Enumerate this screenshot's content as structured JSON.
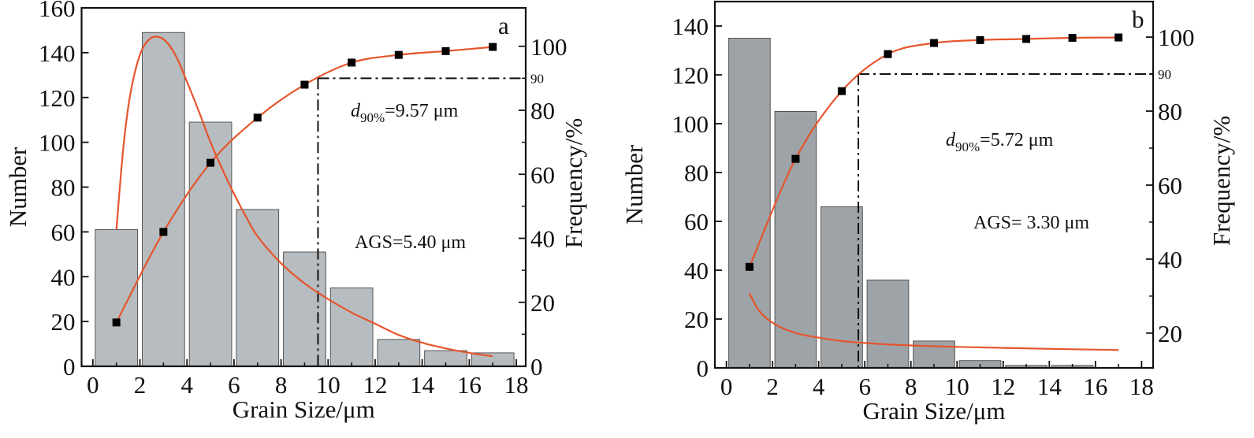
{
  "chart_data": [
    {
      "type": "bar",
      "panel_label": "a",
      "title": "",
      "xlabel": "Grain Size/μm",
      "ylabel": "Number",
      "y2label": "Frequency/%",
      "xlim": [
        -0.48,
        18.4
      ],
      "ylim": [
        0,
        160
      ],
      "y2lim": [
        0,
        112
      ],
      "xticks": [
        0,
        2,
        4,
        6,
        8,
        10,
        12,
        14,
        16,
        18
      ],
      "yticks": [
        0,
        20,
        40,
        60,
        80,
        100,
        120,
        140,
        160
      ],
      "y2ticks": [
        0,
        20,
        40,
        60,
        80,
        100
      ],
      "y2_extra_tick": {
        "value": 90,
        "label": "90"
      },
      "bar_color": "#b7bcc0",
      "curve_color": "#e5552c",
      "bars": {
        "name": "Number",
        "x": [
          1,
          3,
          5,
          7,
          9,
          11,
          13,
          15,
          17
        ],
        "values": [
          61,
          149,
          109,
          70,
          51,
          35,
          12,
          7,
          6
        ]
      },
      "cumulative": {
        "name": "Cumulative frequency",
        "axis": "right",
        "x": [
          1,
          3,
          5,
          7,
          9,
          11,
          13,
          15,
          17
        ],
        "values": [
          13.7,
          42,
          63.6,
          77.7,
          88,
          94.9,
          97.3,
          98.5,
          99.8
        ]
      },
      "distribution_fit": {
        "name": "Distribution fit",
        "axis": "left",
        "x": [
          1,
          1.3,
          1.6,
          2.0,
          2.4,
          2.8,
          3.2,
          3.6,
          4.0,
          4.5,
          5.0,
          5.5,
          6.0,
          6.5,
          7.0,
          8.0,
          9.0,
          10.0,
          11.0,
          12.0,
          13.0,
          14.0,
          15.0,
          16.0,
          17.0
        ],
        "values": [
          61,
          98,
          122,
          139,
          146,
          147,
          144,
          137,
          127,
          114,
          100,
          88,
          77,
          67,
          58,
          46,
          37,
          30,
          24,
          19,
          14,
          10.5,
          8,
          6,
          4.5
        ]
      },
      "d90": {
        "x": 9.57,
        "y_percent": 90
      },
      "annotations": {
        "d90_prefix": "d",
        "d90_sub": "90%",
        "d90_value": "=9.57 μm",
        "ags": "AGS=5.40 μm"
      }
    },
    {
      "type": "bar",
      "panel_label": "b",
      "title": "",
      "xlabel": "Grain Size/μm",
      "ylabel": "Number",
      "y2label": "Frequency/%",
      "xlim": [
        -0.5,
        18.5
      ],
      "ylim": [
        0,
        150
      ],
      "y2lim": [
        10.6,
        109.6
      ],
      "xticks": [
        0,
        2,
        4,
        6,
        8,
        10,
        12,
        14,
        16,
        18
      ],
      "yticks": [
        0,
        20,
        40,
        60,
        80,
        100,
        120,
        140
      ],
      "y2ticks": [
        20,
        40,
        60,
        80,
        100
      ],
      "y2_extra_tick": {
        "value": 90,
        "label": "90"
      },
      "bar_color": "#9ea3a7",
      "curve_color": "#e5552c",
      "bars": {
        "name": "Number",
        "x": [
          1,
          3,
          5,
          7,
          9,
          11,
          13,
          15,
          17
        ],
        "values": [
          135,
          105,
          66,
          36,
          11,
          3,
          1,
          1,
          0
        ]
      },
      "cumulative": {
        "name": "Cumulative frequency",
        "axis": "right",
        "x": [
          1,
          3,
          5,
          7,
          9,
          11,
          13,
          15,
          17
        ],
        "values": [
          37.9,
          67.1,
          85.4,
          95.4,
          98.4,
          99.2,
          99.5,
          99.8,
          99.9
        ]
      },
      "distribution_fit": {
        "name": "Distribution fit",
        "axis": "left",
        "x": [
          1,
          1.3,
          1.6,
          2.0,
          2.5,
          3.0,
          3.5,
          4.0,
          5.0,
          6.0,
          7.0,
          8.0,
          10.0,
          12.0,
          14.0,
          16.0,
          17.0
        ],
        "values": [
          30.6,
          25,
          21.5,
          18.5,
          16,
          14.3,
          13.2,
          12.4,
          11,
          10.2,
          9.6,
          9.2,
          8.6,
          8.2,
          7.8,
          7.5,
          7.3
        ]
      },
      "d90": {
        "x": 5.72,
        "y_percent": 90
      },
      "annotations": {
        "d90_prefix": "d",
        "d90_sub": "90%",
        "d90_value": "=5.72 μm",
        "ags": "AGS= 3.30 μm"
      }
    }
  ]
}
